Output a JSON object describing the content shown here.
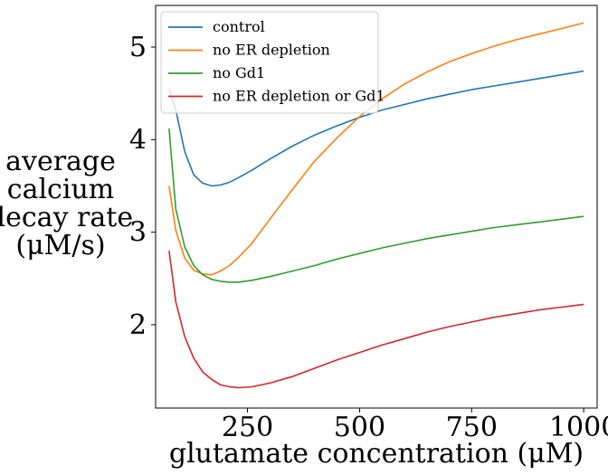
{
  "chart_data": {
    "type": "line",
    "title": "",
    "xlabel": "glutamate concentration (μM)",
    "ylabel_lines": [
      "average",
      "calcium",
      "decay rate",
      "(μM/s)"
    ],
    "xlim": [
      45,
      1030
    ],
    "ylim": [
      1.1,
      5.45
    ],
    "xticks": [
      250,
      500,
      750,
      1000
    ],
    "yticks": [
      2,
      3,
      4,
      5
    ],
    "grid": false,
    "legend_position": "top-left",
    "series": [
      {
        "name": "control",
        "color": "#1f77b4",
        "x": [
          75,
          90,
          110,
          130,
          150,
          170,
          190,
          210,
          230,
          260,
          300,
          350,
          400,
          450,
          500,
          550,
          600,
          650,
          700,
          750,
          800,
          850,
          900,
          950,
          1000
        ],
        "y": [
          4.55,
          4.32,
          3.87,
          3.62,
          3.53,
          3.5,
          3.51,
          3.54,
          3.59,
          3.67,
          3.79,
          3.93,
          4.05,
          4.15,
          4.24,
          4.32,
          4.38,
          4.44,
          4.49,
          4.54,
          4.58,
          4.62,
          4.66,
          4.7,
          4.74
        ]
      },
      {
        "name": "no ER depletion",
        "color": "#ff7f0e",
        "x": [
          75,
          90,
          110,
          130,
          150,
          170,
          190,
          210,
          230,
          260,
          300,
          350,
          400,
          450,
          500,
          550,
          600,
          650,
          700,
          750,
          800,
          850,
          900,
          950,
          1000
        ],
        "y": [
          3.5,
          3.02,
          2.72,
          2.59,
          2.55,
          2.54,
          2.58,
          2.64,
          2.73,
          2.88,
          3.14,
          3.46,
          3.77,
          4.02,
          4.25,
          4.44,
          4.6,
          4.73,
          4.84,
          4.93,
          5.01,
          5.08,
          5.14,
          5.2,
          5.26
        ]
      },
      {
        "name": "no Gd1",
        "color": "#2ca02c",
        "x": [
          75,
          90,
          110,
          130,
          150,
          170,
          190,
          210,
          230,
          260,
          300,
          350,
          400,
          450,
          500,
          550,
          600,
          650,
          700,
          750,
          800,
          850,
          900,
          950,
          1000
        ],
        "y": [
          4.12,
          3.25,
          2.84,
          2.64,
          2.54,
          2.49,
          2.47,
          2.46,
          2.46,
          2.48,
          2.52,
          2.58,
          2.64,
          2.71,
          2.77,
          2.83,
          2.88,
          2.93,
          2.97,
          3.01,
          3.05,
          3.08,
          3.11,
          3.14,
          3.17
        ]
      },
      {
        "name": "no ER depletion or Gd1",
        "color": "#d62728",
        "x": [
          75,
          90,
          110,
          130,
          150,
          170,
          190,
          210,
          230,
          260,
          300,
          350,
          400,
          450,
          500,
          550,
          600,
          650,
          700,
          750,
          800,
          850,
          900,
          950,
          1000
        ],
        "y": [
          2.8,
          2.25,
          1.87,
          1.64,
          1.49,
          1.41,
          1.35,
          1.33,
          1.32,
          1.33,
          1.37,
          1.44,
          1.53,
          1.62,
          1.7,
          1.78,
          1.85,
          1.92,
          1.98,
          2.03,
          2.08,
          2.12,
          2.16,
          2.19,
          2.22
        ]
      }
    ]
  }
}
